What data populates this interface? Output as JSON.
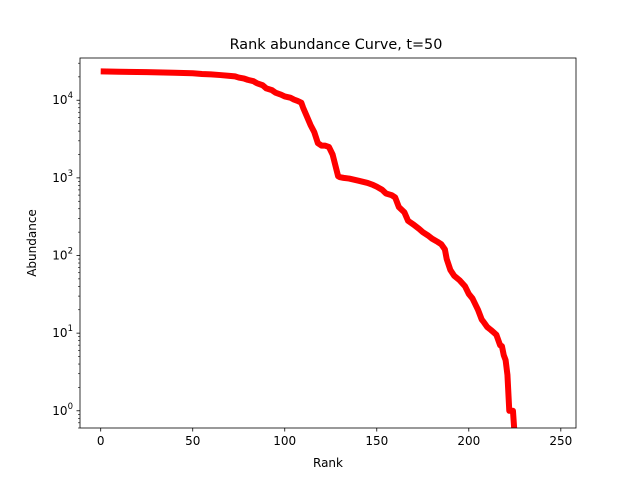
{
  "chart_data": {
    "type": "line",
    "title": "Rank abundance Curve, t=50",
    "xlabel": "Rank",
    "ylabel": "Abundance",
    "xscale": "linear",
    "yscale": "log",
    "xlim": [
      -11.25,
      258.25
    ],
    "ylim": [
      0.6,
      35000
    ],
    "grid": false,
    "legend": "none",
    "x_ticks": [
      {
        "value": 0,
        "label": "0"
      },
      {
        "value": 50,
        "label": "50"
      },
      {
        "value": 100,
        "label": "100"
      },
      {
        "value": 150,
        "label": "150"
      },
      {
        "value": 200,
        "label": "200"
      },
      {
        "value": 250,
        "label": "250"
      }
    ],
    "y_ticks": [
      {
        "value": 1,
        "base": "10",
        "exp": "0"
      },
      {
        "value": 10,
        "base": "10",
        "exp": "1"
      },
      {
        "value": 100,
        "base": "10",
        "exp": "2"
      },
      {
        "value": 1000,
        "base": "10",
        "exp": "3"
      },
      {
        "value": 10000,
        "base": "10",
        "exp": "4"
      }
    ],
    "series": [
      {
        "color": "#ff0000",
        "x": [
          0,
          10,
          25,
          40,
          50,
          55,
          60,
          65,
          70,
          73,
          75,
          78,
          80,
          83,
          85,
          88,
          90,
          93,
          95,
          98,
          100,
          103,
          105,
          107,
          109,
          110,
          112,
          114,
          116,
          118,
          120,
          122,
          124,
          126,
          128,
          129,
          130,
          132,
          135,
          140,
          145,
          148,
          150,
          153,
          155,
          158,
          160,
          162,
          165,
          167,
          170,
          173,
          175,
          178,
          180,
          183,
          185,
          187,
          188,
          190,
          192,
          195,
          198,
          200,
          202,
          203,
          205,
          207,
          208,
          210,
          212,
          214,
          215,
          217,
          218,
          219,
          220,
          221,
          222,
          223,
          224,
          225
        ],
        "y": [
          23500,
          23300,
          23000,
          22600,
          22300,
          21800,
          21500,
          21100,
          20600,
          20300,
          19600,
          19000,
          18300,
          17600,
          16500,
          15600,
          14200,
          13500,
          12500,
          11800,
          11200,
          10800,
          10200,
          9800,
          9300,
          8000,
          6200,
          4800,
          3900,
          2800,
          2600,
          2600,
          2500,
          2000,
          1300,
          1050,
          1020,
          1000,
          980,
          920,
          860,
          810,
          770,
          700,
          630,
          600,
          560,
          420,
          360,
          280,
          250,
          220,
          200,
          180,
          165,
          150,
          140,
          120,
          90,
          65,
          55,
          48,
          40,
          32,
          28,
          25,
          20,
          15,
          14,
          12,
          11,
          10,
          9.5,
          7,
          6.8,
          5.2,
          4.5,
          2.9,
          1.0,
          1.0,
          1.0,
          0.45
        ]
      }
    ]
  }
}
